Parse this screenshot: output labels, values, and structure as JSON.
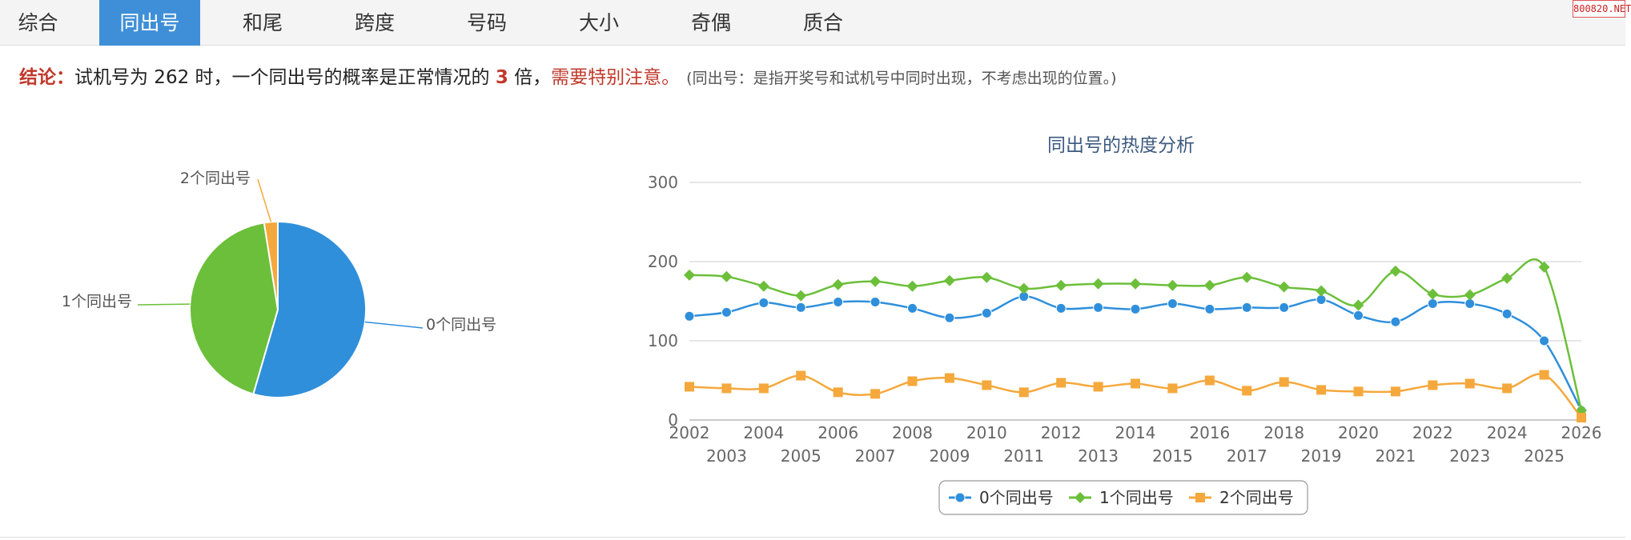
{
  "tabs": [
    {
      "label": "综合",
      "active": false
    },
    {
      "label": "同出号",
      "active": true
    },
    {
      "label": "和尾",
      "active": false
    },
    {
      "label": "跨度",
      "active": false
    },
    {
      "label": "号码",
      "active": false
    },
    {
      "label": "大小",
      "active": false
    },
    {
      "label": "奇偶",
      "active": false
    },
    {
      "label": "质合",
      "active": false
    }
  ],
  "watermark": "800820.NET",
  "conclusion": {
    "label": "结论：",
    "text_before": "试机号为 262 时，一个同出号的概率是正常情况的 ",
    "multiplier": "3",
    "text_after": " 倍，",
    "warning": "需要特别注意。",
    "note": "(同出号：是指开奖号和试机号中同时出现，不考虑出现的位置。)"
  },
  "colors": {
    "blue": "#2f8fdb",
    "green": "#6cbf3a",
    "orange": "#f5a83c",
    "accent_red": "#c0392b",
    "tab_active": "#3f8fd8"
  },
  "chart_data": [
    {
      "type": "pie",
      "labels": [
        "0个同出号",
        "1个同出号",
        "2个同出号"
      ],
      "values": [
        54.5,
        43.0,
        2.5
      ],
      "colors": [
        "#2f8fdb",
        "#6cbf3a",
        "#f5a83c"
      ]
    },
    {
      "type": "line",
      "title": "同出号的热度分析",
      "x": [
        "2002",
        "2003",
        "2004",
        "2005",
        "2006",
        "2007",
        "2008",
        "2009",
        "2010",
        "2011",
        "2012",
        "2013",
        "2014",
        "2015",
        "2016",
        "2017",
        "2018",
        "2019",
        "2020",
        "2021",
        "2022",
        "2023",
        "2024",
        "2025",
        "2026"
      ],
      "ylim": [
        0,
        300
      ],
      "yticks": [
        "0",
        "100",
        "200",
        "300"
      ],
      "grid": true,
      "legend": "bottom-center",
      "series": [
        {
          "name": "0个同出号",
          "color": "#2f8fdb",
          "marker": "circle",
          "values": [
            131,
            136,
            148,
            142,
            149,
            149,
            141,
            129,
            135,
            156,
            141,
            142,
            140,
            147,
            140,
            142,
            142,
            152,
            132,
            124,
            147,
            147,
            134,
            100,
            12
          ]
        },
        {
          "name": "1个同出号",
          "color": "#6cbf3a",
          "marker": "diamond",
          "values": [
            183,
            181,
            169,
            157,
            171,
            175,
            169,
            176,
            180,
            166,
            170,
            172,
            172,
            170,
            170,
            180,
            168,
            163,
            145,
            188,
            159,
            158,
            179,
            193,
            12
          ]
        },
        {
          "name": "2个同出号",
          "color": "#f5a83c",
          "marker": "square",
          "values": [
            42,
            40,
            40,
            56,
            35,
            33,
            49,
            53,
            44,
            35,
            47,
            42,
            46,
            40,
            50,
            37,
            48,
            38,
            36,
            36,
            44,
            46,
            40,
            57,
            3
          ]
        }
      ]
    }
  ]
}
